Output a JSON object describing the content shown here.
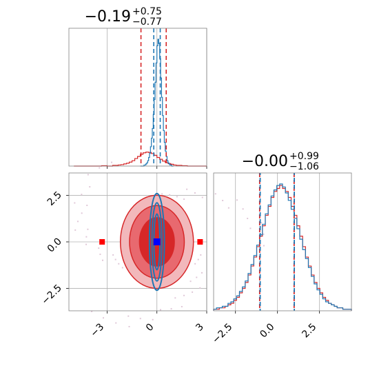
{
  "chart_data": [
    {
      "panel": "marginal-top",
      "type": "histogram",
      "title_main": "−0.19",
      "title_sup": "+0.75",
      "title_sub": "−0.77",
      "xlim": [
        -5.3,
        3.0
      ],
      "quantile_lines": {
        "wide": [
          -0.96,
          0.56
        ],
        "narrow": [
          -0.19,
          0.2
        ]
      },
      "series": [
        {
          "color": "#d62728",
          "edges": [
            -5.0,
            3.0
          ],
          "counts": [
            0,
            0,
            0,
            0,
            0,
            0,
            0,
            0,
            0,
            0,
            1,
            1,
            0,
            0,
            2,
            2,
            3,
            4,
            6,
            8,
            11,
            15,
            21,
            27,
            33,
            37,
            39,
            38,
            35,
            30,
            24,
            19,
            14,
            10,
            7,
            5,
            3,
            2,
            2,
            1,
            1,
            0,
            0,
            0,
            0,
            0,
            0,
            0
          ]
        },
        {
          "color": "#1f77b4",
          "edges": [
            -1.0,
            1.0
          ],
          "counts": [
            0,
            0,
            0,
            0,
            1,
            1,
            2,
            3,
            5,
            8,
            12,
            18,
            26,
            35,
            48,
            62,
            78,
            96,
            112,
            118,
            114,
            100,
            82,
            64,
            47,
            33,
            22,
            14,
            9,
            5,
            3,
            2,
            1,
            1,
            0,
            0
          ]
        }
      ],
      "ticks": [
        -3,
        0,
        3
      ]
    },
    {
      "panel": "joint",
      "type": "contour",
      "xlim": [
        -5.3,
        3.0
      ],
      "ylim": [
        -3.7,
        3.7
      ],
      "xticks": [
        -3,
        0,
        3
      ],
      "yticks": [
        -2.5,
        0.0,
        2.5
      ],
      "xtick_labels": [
        "−3",
        "0",
        "3"
      ],
      "ytick_labels": [
        "−2.5",
        "0.0",
        "2.5"
      ],
      "red_levels": [
        {
          "rx": 2.2,
          "ry": 2.5
        },
        {
          "rx": 1.65,
          "ry": 1.95
        },
        {
          "rx": 1.05,
          "ry": 1.3
        }
      ],
      "blue_levels": [
        {
          "rx": 0.45,
          "ry": 2.6
        },
        {
          "rx": 0.3,
          "ry": 2.1
        },
        {
          "rx": 0.18,
          "ry": 1.5
        }
      ],
      "center_marker": {
        "x": 0.0,
        "y": 0.0
      },
      "side_markers": [
        {
          "x": -3.3,
          "y": 0.0
        },
        {
          "x": 2.6,
          "y": 0.0
        }
      ]
    },
    {
      "panel": "marginal-right",
      "type": "histogram",
      "title_main": "−0.00",
      "title_sup": "+0.99",
      "title_sub": "−1.06",
      "xlim": [
        -3.8,
        4.4
      ],
      "xticks": [
        -2.5,
        0.0,
        2.5
      ],
      "xtick_labels": [
        "−2.5",
        "0.0",
        "2.5"
      ],
      "quantile_lines": {
        "red": [
          -1.06,
          0.99
        ],
        "blue": [
          -1.03,
          1.0
        ]
      },
      "series": [
        {
          "color": "#d62728",
          "counts": [
            1,
            1,
            2,
            2,
            3,
            4,
            5,
            7,
            9,
            12,
            15,
            19,
            24,
            30,
            36,
            43,
            50,
            57,
            64,
            70,
            76,
            80,
            82,
            84,
            82,
            80,
            76,
            70,
            64,
            57,
            50,
            43,
            36,
            30,
            24,
            19,
            15,
            12,
            9,
            7,
            5,
            4,
            3,
            2,
            2,
            1,
            1,
            1
          ]
        },
        {
          "color": "#1f77b4",
          "counts": [
            1,
            2,
            2,
            3,
            3,
            5,
            6,
            8,
            10,
            13,
            16,
            20,
            25,
            31,
            37,
            44,
            51,
            58,
            65,
            71,
            77,
            81,
            84,
            85,
            83,
            79,
            74,
            68,
            62,
            55,
            48,
            41,
            35,
            29,
            23,
            18,
            14,
            11,
            8,
            6,
            5,
            4,
            3,
            2,
            2,
            1,
            1,
            1
          ]
        }
      ],
      "edges": [
        -3.8,
        4.4
      ]
    }
  ]
}
